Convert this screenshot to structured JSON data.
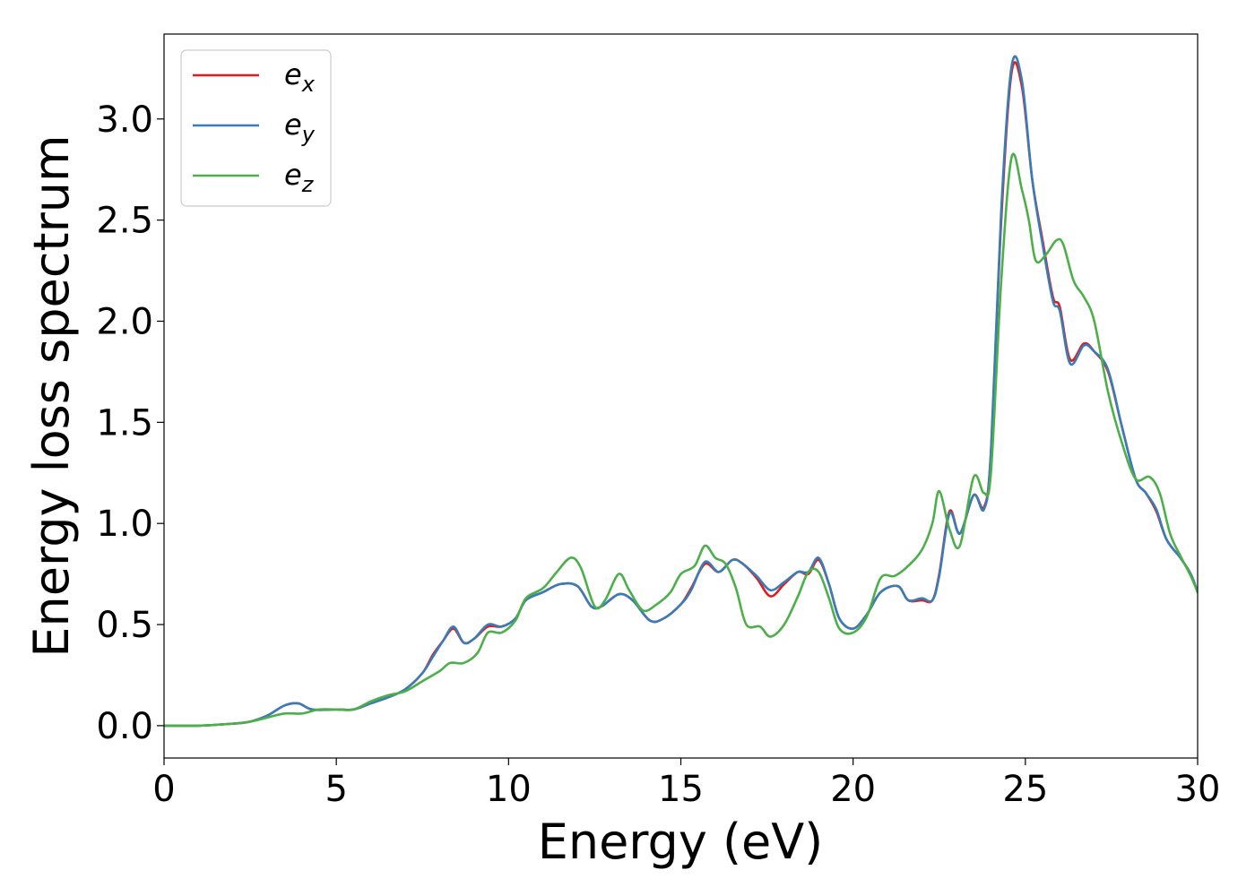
{
  "chart_data": {
    "type": "line",
    "xlabel": "Energy (eV)",
    "ylabel": "Energy loss spectrum",
    "xlim": [
      0,
      30
    ],
    "ylim": [
      -0.16,
      3.42
    ],
    "xticks": [
      0,
      5,
      10,
      15,
      20,
      25,
      30
    ],
    "xtick_labels": [
      "0",
      "5",
      "10",
      "15",
      "20",
      "25",
      "30"
    ],
    "yticks": [
      0.0,
      0.5,
      1.0,
      1.5,
      2.0,
      2.5,
      3.0
    ],
    "ytick_labels": [
      "0.0",
      "0.5",
      "1.0",
      "1.5",
      "2.0",
      "2.5",
      "3.0"
    ],
    "grid": false,
    "legend_position": "top-left",
    "series": [
      {
        "name": "e",
        "subscript": "x",
        "color": "#e41a1c",
        "points": [
          [
            0,
            0
          ],
          [
            1,
            0
          ],
          [
            2,
            0.01
          ],
          [
            2.5,
            0.02
          ],
          [
            3,
            0.05
          ],
          [
            3.5,
            0.1
          ],
          [
            3.9,
            0.11
          ],
          [
            4.3,
            0.08
          ],
          [
            5,
            0.08
          ],
          [
            5.5,
            0.08
          ],
          [
            6,
            0.11
          ],
          [
            6.5,
            0.14
          ],
          [
            7,
            0.18
          ],
          [
            7.5,
            0.26
          ],
          [
            7.8,
            0.35
          ],
          [
            8.1,
            0.42
          ],
          [
            8.4,
            0.48
          ],
          [
            8.7,
            0.41
          ],
          [
            9,
            0.43
          ],
          [
            9.4,
            0.49
          ],
          [
            9.8,
            0.49
          ],
          [
            10.2,
            0.53
          ],
          [
            10.5,
            0.62
          ],
          [
            11,
            0.66
          ],
          [
            11.5,
            0.7
          ],
          [
            12,
            0.69
          ],
          [
            12.4,
            0.59
          ],
          [
            12.7,
            0.59
          ],
          [
            13.2,
            0.65
          ],
          [
            13.6,
            0.62
          ],
          [
            14.1,
            0.52
          ],
          [
            14.5,
            0.53
          ],
          [
            15,
            0.6
          ],
          [
            15.3,
            0.68
          ],
          [
            15.7,
            0.8
          ],
          [
            16.1,
            0.76
          ],
          [
            16.5,
            0.82
          ],
          [
            16.8,
            0.8
          ],
          [
            17.2,
            0.73
          ],
          [
            17.6,
            0.64
          ],
          [
            18,
            0.7
          ],
          [
            18.4,
            0.76
          ],
          [
            18.7,
            0.75
          ],
          [
            19,
            0.82
          ],
          [
            19.3,
            0.7
          ],
          [
            19.6,
            0.53
          ],
          [
            20,
            0.48
          ],
          [
            20.4,
            0.55
          ],
          [
            20.8,
            0.66
          ],
          [
            21.3,
            0.69
          ],
          [
            21.6,
            0.62
          ],
          [
            22,
            0.62
          ],
          [
            22.3,
            0.62
          ],
          [
            22.5,
            0.75
          ],
          [
            22.8,
            1.06
          ],
          [
            23.1,
            0.95
          ],
          [
            23.5,
            1.14
          ],
          [
            23.8,
            1.08
          ],
          [
            24,
            1.35
          ],
          [
            24.3,
            2.5
          ],
          [
            24.6,
            3.23
          ],
          [
            24.9,
            3.16
          ],
          [
            25.2,
            2.7
          ],
          [
            25.5,
            2.4
          ],
          [
            25.8,
            2.12
          ],
          [
            26,
            2.07
          ],
          [
            26.3,
            1.81
          ],
          [
            26.7,
            1.89
          ],
          [
            27,
            1.85
          ],
          [
            27.4,
            1.75
          ],
          [
            27.8,
            1.48
          ],
          [
            28.2,
            1.22
          ],
          [
            28.5,
            1.15
          ],
          [
            28.8,
            1.06
          ],
          [
            29.1,
            0.92
          ],
          [
            29.5,
            0.83
          ],
          [
            29.8,
            0.75
          ],
          [
            30,
            0.66
          ]
        ]
      },
      {
        "name": "e",
        "subscript": "y",
        "color": "#377eb8",
        "points": [
          [
            0,
            0
          ],
          [
            1,
            0
          ],
          [
            2,
            0.01
          ],
          [
            2.5,
            0.02
          ],
          [
            3,
            0.05
          ],
          [
            3.5,
            0.1
          ],
          [
            3.9,
            0.11
          ],
          [
            4.3,
            0.08
          ],
          [
            5,
            0.08
          ],
          [
            5.5,
            0.08
          ],
          [
            6,
            0.11
          ],
          [
            6.5,
            0.14
          ],
          [
            7,
            0.18
          ],
          [
            7.5,
            0.26
          ],
          [
            7.8,
            0.34
          ],
          [
            8.1,
            0.42
          ],
          [
            8.4,
            0.49
          ],
          [
            8.7,
            0.41
          ],
          [
            9,
            0.43
          ],
          [
            9.4,
            0.5
          ],
          [
            9.8,
            0.49
          ],
          [
            10.2,
            0.53
          ],
          [
            10.5,
            0.62
          ],
          [
            11,
            0.66
          ],
          [
            11.5,
            0.7
          ],
          [
            12,
            0.69
          ],
          [
            12.4,
            0.59
          ],
          [
            12.7,
            0.59
          ],
          [
            13.2,
            0.65
          ],
          [
            13.6,
            0.62
          ],
          [
            14.1,
            0.52
          ],
          [
            14.5,
            0.53
          ],
          [
            15,
            0.6
          ],
          [
            15.3,
            0.67
          ],
          [
            15.7,
            0.81
          ],
          [
            16.1,
            0.76
          ],
          [
            16.5,
            0.82
          ],
          [
            16.8,
            0.8
          ],
          [
            17.2,
            0.74
          ],
          [
            17.6,
            0.67
          ],
          [
            18,
            0.71
          ],
          [
            18.4,
            0.76
          ],
          [
            18.7,
            0.76
          ],
          [
            19,
            0.83
          ],
          [
            19.3,
            0.7
          ],
          [
            19.6,
            0.53
          ],
          [
            20,
            0.48
          ],
          [
            20.4,
            0.55
          ],
          [
            20.8,
            0.66
          ],
          [
            21.3,
            0.69
          ],
          [
            21.6,
            0.62
          ],
          [
            22,
            0.63
          ],
          [
            22.3,
            0.62
          ],
          [
            22.5,
            0.74
          ],
          [
            22.8,
            1.05
          ],
          [
            23.1,
            0.95
          ],
          [
            23.5,
            1.14
          ],
          [
            23.8,
            1.07
          ],
          [
            24,
            1.35
          ],
          [
            24.3,
            2.55
          ],
          [
            24.6,
            3.26
          ],
          [
            24.9,
            3.19
          ],
          [
            25.2,
            2.7
          ],
          [
            25.5,
            2.38
          ],
          [
            25.8,
            2.1
          ],
          [
            26,
            2.05
          ],
          [
            26.3,
            1.79
          ],
          [
            26.7,
            1.88
          ],
          [
            27,
            1.85
          ],
          [
            27.4,
            1.76
          ],
          [
            27.8,
            1.48
          ],
          [
            28.2,
            1.22
          ],
          [
            28.5,
            1.15
          ],
          [
            28.8,
            1.07
          ],
          [
            29.1,
            0.92
          ],
          [
            29.5,
            0.83
          ],
          [
            29.8,
            0.75
          ],
          [
            30,
            0.66
          ]
        ]
      },
      {
        "name": "e",
        "subscript": "z",
        "color": "#4daf4a",
        "points": [
          [
            0,
            0
          ],
          [
            1,
            0
          ],
          [
            2,
            0.01
          ],
          [
            2.5,
            0.02
          ],
          [
            3,
            0.04
          ],
          [
            3.5,
            0.06
          ],
          [
            4,
            0.06
          ],
          [
            4.5,
            0.08
          ],
          [
            5,
            0.08
          ],
          [
            5.5,
            0.08
          ],
          [
            6,
            0.12
          ],
          [
            6.5,
            0.15
          ],
          [
            7,
            0.17
          ],
          [
            7.5,
            0.22
          ],
          [
            8,
            0.27
          ],
          [
            8.3,
            0.31
          ],
          [
            8.7,
            0.31
          ],
          [
            9.1,
            0.36
          ],
          [
            9.4,
            0.46
          ],
          [
            9.8,
            0.46
          ],
          [
            10.2,
            0.52
          ],
          [
            10.5,
            0.63
          ],
          [
            11,
            0.68
          ],
          [
            11.4,
            0.76
          ],
          [
            11.8,
            0.83
          ],
          [
            12.1,
            0.78
          ],
          [
            12.5,
            0.59
          ],
          [
            12.8,
            0.62
          ],
          [
            13.2,
            0.75
          ],
          [
            13.5,
            0.67
          ],
          [
            13.9,
            0.57
          ],
          [
            14.3,
            0.6
          ],
          [
            14.7,
            0.66
          ],
          [
            15,
            0.75
          ],
          [
            15.4,
            0.79
          ],
          [
            15.7,
            0.89
          ],
          [
            16,
            0.83
          ],
          [
            16.3,
            0.8
          ],
          [
            16.6,
            0.68
          ],
          [
            16.9,
            0.5
          ],
          [
            17.3,
            0.49
          ],
          [
            17.6,
            0.44
          ],
          [
            18,
            0.5
          ],
          [
            18.4,
            0.64
          ],
          [
            18.7,
            0.76
          ],
          [
            19,
            0.76
          ],
          [
            19.3,
            0.63
          ],
          [
            19.6,
            0.48
          ],
          [
            20,
            0.46
          ],
          [
            20.4,
            0.54
          ],
          [
            20.8,
            0.73
          ],
          [
            21.2,
            0.74
          ],
          [
            21.6,
            0.79
          ],
          [
            22,
            0.87
          ],
          [
            22.3,
            1.0
          ],
          [
            22.5,
            1.16
          ],
          [
            22.8,
            0.97
          ],
          [
            23.1,
            0.89
          ],
          [
            23.5,
            1.23
          ],
          [
            23.8,
            1.15
          ],
          [
            24,
            1.25
          ],
          [
            24.3,
            2.2
          ],
          [
            24.6,
            2.81
          ],
          [
            24.9,
            2.65
          ],
          [
            25.1,
            2.5
          ],
          [
            25.3,
            2.3
          ],
          [
            25.6,
            2.33
          ],
          [
            25.9,
            2.4
          ],
          [
            26.1,
            2.38
          ],
          [
            26.4,
            2.2
          ],
          [
            26.7,
            2.12
          ],
          [
            27,
            2.0
          ],
          [
            27.4,
            1.65
          ],
          [
            27.8,
            1.4
          ],
          [
            28.2,
            1.22
          ],
          [
            28.6,
            1.23
          ],
          [
            28.9,
            1.15
          ],
          [
            29.2,
            0.95
          ],
          [
            29.5,
            0.84
          ],
          [
            29.8,
            0.74
          ],
          [
            30,
            0.66
          ]
        ]
      }
    ]
  }
}
